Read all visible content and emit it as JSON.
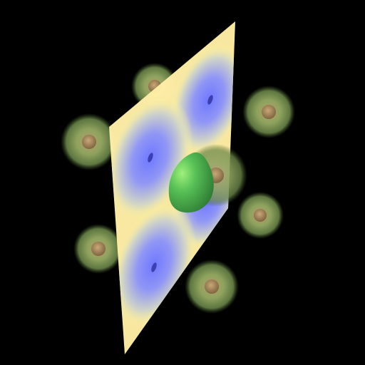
{
  "scene": {
    "background_color": "#000000",
    "atom_count": 8,
    "atom_shell_color": "#7f9a55",
    "atom_core_color": "#a88a5e",
    "plane_edge_color": "#ffff99",
    "plane_lobe_color": "#7f86ff",
    "plane_node_color": "#3b3fb0",
    "central_lobe_color": "#4db34d",
    "central_lobe_highlight_color": "#9ef07a"
  }
}
